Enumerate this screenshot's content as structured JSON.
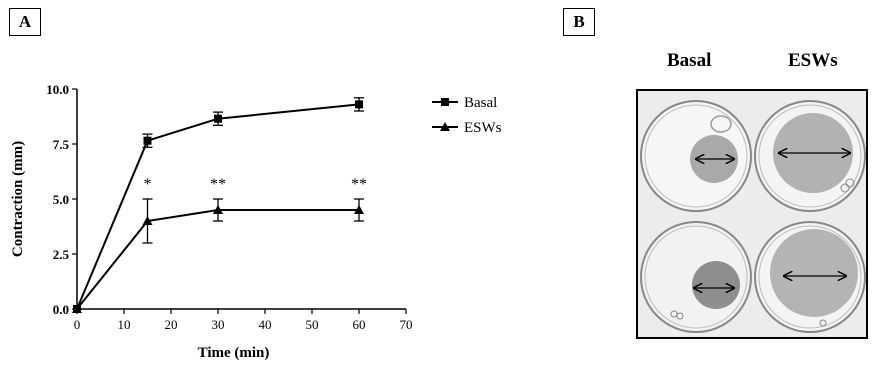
{
  "panels": {
    "a_label": "A",
    "b_label": "B"
  },
  "chart_data": {
    "type": "line",
    "xlabel": "Time (min)",
    "ylabel": "Contraction (mm)",
    "xlim": [
      0,
      70
    ],
    "ylim": [
      0,
      10
    ],
    "x_ticks": [
      0,
      10,
      20,
      30,
      40,
      50,
      60,
      70
    ],
    "y_ticks": [
      0.0,
      2.5,
      5.0,
      7.5,
      10.0
    ],
    "y_tick_labels": [
      "0.0",
      "2.5",
      "5.0",
      "7.5",
      "10.0"
    ],
    "grid": false,
    "legend_position": "right",
    "series": [
      {
        "name": "Basal",
        "marker": "square",
        "x": [
          0,
          15,
          30,
          60
        ],
        "y": [
          0,
          7.65,
          8.65,
          9.3
        ],
        "err": [
          0,
          0.3,
          0.3,
          0.3
        ]
      },
      {
        "name": "ESWs",
        "marker": "triangle",
        "x": [
          0,
          15,
          30,
          60
        ],
        "y": [
          0,
          4.0,
          4.5,
          4.5
        ],
        "err": [
          0,
          1.0,
          0.5,
          0.5
        ]
      }
    ],
    "annotations": [
      {
        "x": 15,
        "y": 5.0,
        "text": "*"
      },
      {
        "x": 30,
        "y": 5.0,
        "text": "**"
      },
      {
        "x": 60,
        "y": 5.0,
        "text": "**"
      }
    ]
  },
  "photo_panel": {
    "column_labels": [
      "Basal",
      "ESWs"
    ]
  }
}
